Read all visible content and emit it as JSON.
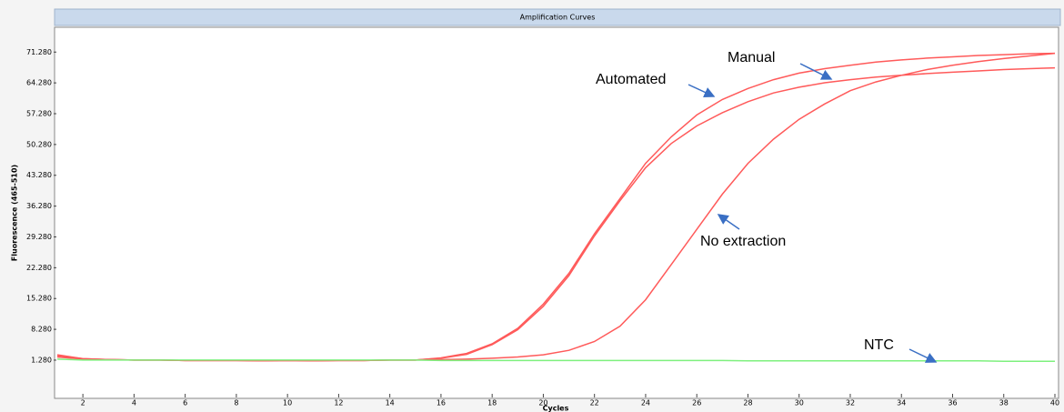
{
  "chart_data": {
    "type": "line",
    "title": "Amplification Curves",
    "xlabel": "Cycles",
    "ylabel": "Fluorescence (465-510)",
    "annotations": [
      "Manual",
      "Automated",
      "No extraction",
      "NTC"
    ],
    "x": [
      1,
      2,
      3,
      4,
      5,
      6,
      7,
      8,
      9,
      10,
      11,
      12,
      13,
      14,
      15,
      16,
      17,
      18,
      19,
      20,
      21,
      22,
      23,
      24,
      25,
      26,
      27,
      28,
      29,
      30,
      31,
      32,
      33,
      34,
      35,
      36,
      37,
      38,
      39,
      40
    ],
    "xlim": [
      1,
      40
    ],
    "xticks": [
      2,
      4,
      6,
      8,
      10,
      12,
      14,
      16,
      18,
      20,
      22,
      24,
      26,
      28,
      30,
      32,
      34,
      36,
      38,
      40
    ],
    "ylim": [
      -7.2,
      76.5
    ],
    "yticks": [
      {
        "value": 1.28,
        "label": "1.280"
      },
      {
        "value": 8.28,
        "label": "8.280"
      },
      {
        "value": 15.28,
        "label": "15.280"
      },
      {
        "value": 22.28,
        "label": "22.280"
      },
      {
        "value": 29.28,
        "label": "29.280"
      },
      {
        "value": 36.28,
        "label": "36.280"
      },
      {
        "value": 43.28,
        "label": "43.280"
      },
      {
        "value": 50.28,
        "label": "50.280"
      },
      {
        "value": 57.28,
        "label": "57.280"
      },
      {
        "value": 64.28,
        "label": "64.280"
      },
      {
        "value": 71.28,
        "label": "71.280"
      }
    ],
    "series": [
      {
        "name": "Automated",
        "color": "#ff5a5a",
        "values": [
          2.5,
          1.6,
          1.4,
          1.3,
          1.3,
          1.2,
          1.2,
          1.2,
          1.1,
          1.2,
          1.1,
          1.2,
          1.2,
          1.3,
          1.3,
          1.8,
          2.8,
          5,
          8.5,
          14,
          21,
          30,
          38,
          46,
          52,
          57,
          60.5,
          63,
          65,
          66.5,
          67.5,
          68.3,
          69,
          69.5,
          69.9,
          70.2,
          70.5,
          70.7,
          70.9,
          71
        ]
      },
      {
        "name": "Manual",
        "color": "#ff5a5a",
        "values": [
          2.3,
          1.6,
          1.4,
          1.3,
          1.3,
          1.2,
          1.2,
          1.2,
          1.1,
          1.2,
          1.1,
          1.2,
          1.2,
          1.3,
          1.3,
          1.7,
          2.6,
          4.8,
          8.2,
          13.5,
          20.5,
          29.5,
          37.5,
          45,
          50.5,
          54.5,
          57.5,
          60,
          62,
          63.3,
          64.3,
          65,
          65.6,
          66,
          66.4,
          66.7,
          67,
          67.3,
          67.5,
          67.7
        ]
      },
      {
        "name": "No extraction",
        "color": "#ff5a5a",
        "values": [
          2.0,
          1.5,
          1.4,
          1.3,
          1.3,
          1.2,
          1.2,
          1.2,
          1.2,
          1.2,
          1.2,
          1.2,
          1.2,
          1.3,
          1.3,
          1.4,
          1.5,
          1.7,
          2,
          2.5,
          3.5,
          5.5,
          9,
          15,
          23,
          31,
          39,
          46,
          51.5,
          56,
          59.5,
          62.5,
          64.5,
          66,
          67.3,
          68.3,
          69.1,
          69.8,
          70.4,
          71
        ]
      },
      {
        "name": "NTC",
        "color": "#7ef07e",
        "values": [
          1.5,
          1.3,
          1.3,
          1.3,
          1.3,
          1.3,
          1.3,
          1.3,
          1.3,
          1.3,
          1.3,
          1.3,
          1.3,
          1.3,
          1.3,
          1.2,
          1.2,
          1.2,
          1.2,
          1.2,
          1.2,
          1.2,
          1.2,
          1.2,
          1.2,
          1.2,
          1.2,
          1.1,
          1.1,
          1.1,
          1.1,
          1.1,
          1.1,
          1.1,
          1.1,
          1.1,
          1.1,
          1.0,
          1.0,
          1.0
        ]
      }
    ]
  }
}
